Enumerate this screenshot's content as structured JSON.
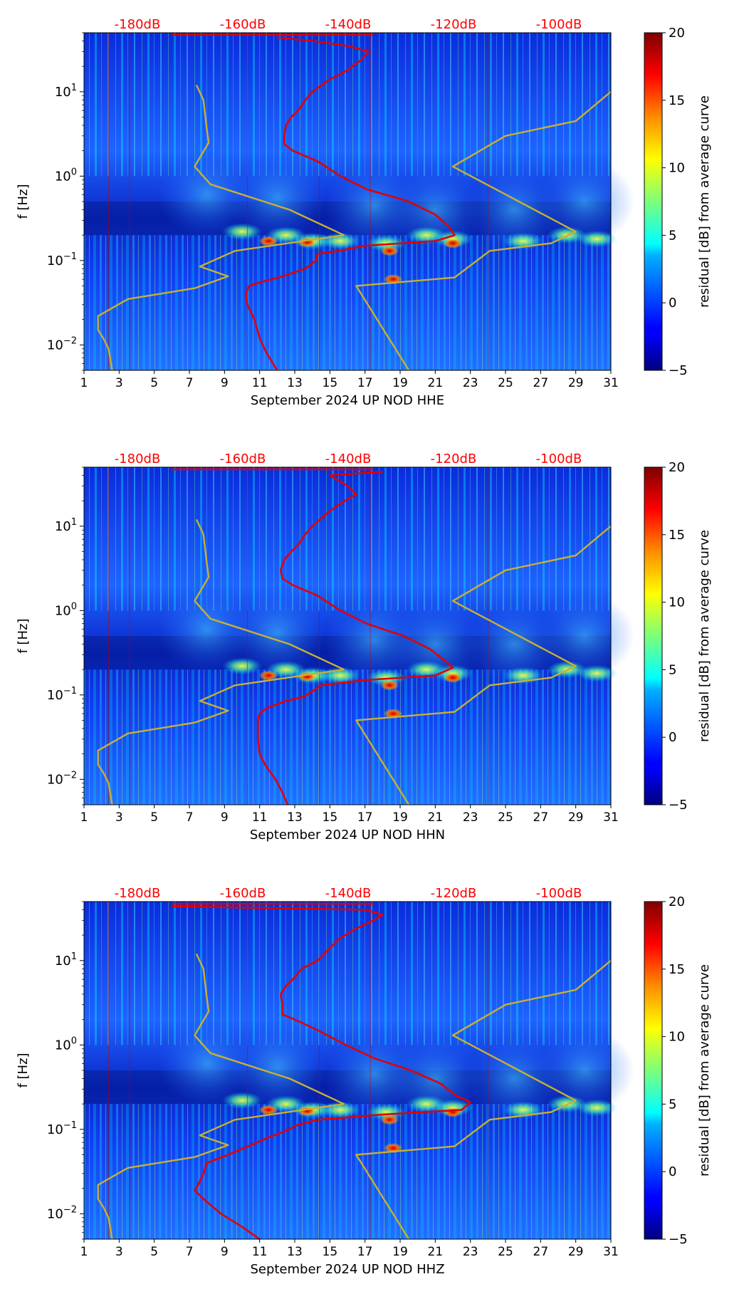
{
  "chart_data": [
    {
      "type": "heatmap",
      "xlabel": "September 2024 UP NOD  HHE",
      "ylabel": "f [Hz]",
      "x_ticks": [
        "1",
        "3",
        "5",
        "7",
        "9",
        "11",
        "13",
        "15",
        "17",
        "19",
        "21",
        "23",
        "25",
        "27",
        "29",
        "31"
      ],
      "x_range": [
        1,
        31
      ],
      "y_scale": "log",
      "y_ticks": [
        {
          "label": "10",
          "exp": "−2",
          "value": 0.01
        },
        {
          "label": "10",
          "exp": "−1",
          "value": 0.1
        },
        {
          "label": "10",
          "exp": "0",
          "value": 1
        },
        {
          "label": "10",
          "exp": "1",
          "value": 10
        }
      ],
      "y_range": [
        0.005,
        50
      ],
      "top_axis_labels": [
        "-180dB",
        "-160dB",
        "-140dB",
        "-120dB",
        "-100dB"
      ],
      "top_axis_color": "#ff0000",
      "colorbar": {
        "label": "residual [dB] from average curve",
        "ticks": [
          "−5",
          "0",
          "5",
          "10",
          "15",
          "20"
        ],
        "range": [
          -5,
          20
        ],
        "colormap": "jet"
      },
      "series": [
        {
          "color": "#e00000",
          "role": "average PSD curve",
          "points": [
            [
              44,
              12
            ],
            [
              40,
              14
            ],
            [
              35,
              16
            ],
            [
              30,
              17.2
            ],
            [
              24,
              16.8
            ],
            [
              18,
              16
            ],
            [
              14,
              15
            ],
            [
              10,
              14
            ],
            [
              8,
              13.6
            ],
            [
              6,
              13.2
            ],
            [
              5,
              12.8
            ],
            [
              4,
              12.5
            ],
            [
              3,
              12.4
            ],
            [
              2.4,
              12.4
            ],
            [
              2,
              12.9
            ],
            [
              1.5,
              14.3
            ],
            [
              1,
              15.6
            ],
            [
              0.7,
              17.1
            ],
            [
              0.5,
              19.5
            ],
            [
              0.35,
              21
            ],
            [
              0.25,
              21.8
            ],
            [
              0.2,
              22.1
            ],
            [
              0.17,
              21
            ],
            [
              0.15,
              17
            ],
            [
              0.13,
              15.5
            ],
            [
              0.12,
              14.3
            ],
            [
              0.1,
              14.2
            ],
            [
              0.08,
              13.6
            ],
            [
              0.065,
              12.3
            ],
            [
              0.055,
              11
            ],
            [
              0.05,
              10.4
            ],
            [
              0.04,
              10.2
            ],
            [
              0.03,
              10.3
            ],
            [
              0.02,
              10.7
            ],
            [
              0.012,
              11
            ],
            [
              0.008,
              11.4
            ],
            [
              0.005,
              12
            ]
          ]
        },
        {
          "color": "#c8b032",
          "role": "Peterson NLNM",
          "points": [
            [
              0.005,
              2.6
            ],
            [
              0.009,
              2.4
            ],
            [
              0.012,
              2.1
            ],
            [
              0.015,
              1.8
            ],
            [
              0.022,
              1.8
            ],
            [
              0.035,
              3.5
            ],
            [
              0.047,
              7.3
            ],
            [
              0.065,
              9.2
            ],
            [
              0.085,
              7.6
            ],
            [
              0.13,
              9.6
            ],
            [
              0.2,
              15.8
            ],
            [
              0.4,
              12.7
            ],
            [
              0.8,
              8.2
            ],
            [
              1.3,
              7.3
            ],
            [
              2.5,
              8.1
            ],
            [
              3.5,
              8.0
            ],
            [
              8,
              7.8
            ],
            [
              12,
              7.4
            ]
          ]
        },
        {
          "color": "#c8b032",
          "role": "Peterson NHNM",
          "points": [
            [
              0.005,
              19.5
            ],
            [
              0.05,
              16.5
            ],
            [
              0.063,
              22.1
            ],
            [
              0.13,
              24.1
            ],
            [
              0.16,
              27.6
            ],
            [
              0.22,
              29
            ],
            [
              1.3,
              22
            ],
            [
              3,
              25
            ],
            [
              4.5,
              29
            ],
            [
              10,
              31
            ]
          ]
        }
      ]
    },
    {
      "type": "heatmap",
      "xlabel": "September 2024 UP NOD  HHN",
      "ylabel": "f [Hz]",
      "x_ticks": [
        "1",
        "3",
        "5",
        "7",
        "9",
        "11",
        "13",
        "15",
        "17",
        "19",
        "21",
        "23",
        "25",
        "27",
        "29",
        "31"
      ],
      "x_range": [
        1,
        31
      ],
      "y_scale": "log",
      "y_ticks": [
        {
          "label": "10",
          "exp": "−2",
          "value": 0.01
        },
        {
          "label": "10",
          "exp": "−1",
          "value": 0.1
        },
        {
          "label": "10",
          "exp": "0",
          "value": 1
        },
        {
          "label": "10",
          "exp": "1",
          "value": 10
        }
      ],
      "y_range": [
        0.005,
        50
      ],
      "top_axis_labels": [
        "-180dB",
        "-160dB",
        "-140dB",
        "-120dB",
        "-100dB"
      ],
      "top_axis_color": "#ff0000",
      "colorbar": {
        "label": "residual [dB] from average curve",
        "ticks": [
          "−5",
          "0",
          "5",
          "10",
          "15",
          "20"
        ],
        "range": [
          -5,
          20
        ],
        "colormap": "jet"
      },
      "series": [
        {
          "color": "#e00000",
          "role": "average PSD curve",
          "points": [
            [
              44,
              18
            ],
            [
              40,
              15
            ],
            [
              30,
              16
            ],
            [
              24,
              16.5
            ],
            [
              18,
              15.5
            ],
            [
              14,
              14.8
            ],
            [
              10,
              14
            ],
            [
              8,
              13.6
            ],
            [
              6,
              13.2
            ],
            [
              5,
              12.8
            ],
            [
              4,
              12.4
            ],
            [
              3,
              12.2
            ],
            [
              2.4,
              12.3
            ],
            [
              2,
              12.9
            ],
            [
              1.5,
              14.3
            ],
            [
              1,
              15.6
            ],
            [
              0.7,
              17.1
            ],
            [
              0.5,
              19.2
            ],
            [
              0.35,
              20.7
            ],
            [
              0.25,
              21.6
            ],
            [
              0.21,
              22
            ],
            [
              0.17,
              21
            ],
            [
              0.15,
              17
            ],
            [
              0.13,
              14.5
            ],
            [
              0.11,
              14
            ],
            [
              0.095,
              13.5
            ],
            [
              0.085,
              12.5
            ],
            [
              0.07,
              11.4
            ],
            [
              0.06,
              11
            ],
            [
              0.05,
              10.9
            ],
            [
              0.04,
              10.9
            ],
            [
              0.03,
              10.9
            ],
            [
              0.02,
              11
            ],
            [
              0.015,
              11.3
            ],
            [
              0.01,
              11.9
            ],
            [
              0.007,
              12.3
            ],
            [
              0.005,
              12.6
            ]
          ]
        },
        {
          "color": "#c8b032",
          "role": "Peterson NLNM",
          "points": [
            [
              0.005,
              2.6
            ],
            [
              0.009,
              2.4
            ],
            [
              0.012,
              2.1
            ],
            [
              0.015,
              1.8
            ],
            [
              0.022,
              1.8
            ],
            [
              0.035,
              3.5
            ],
            [
              0.047,
              7.3
            ],
            [
              0.065,
              9.2
            ],
            [
              0.085,
              7.6
            ],
            [
              0.13,
              9.6
            ],
            [
              0.2,
              15.8
            ],
            [
              0.4,
              12.7
            ],
            [
              0.8,
              8.2
            ],
            [
              1.3,
              7.3
            ],
            [
              2.5,
              8.1
            ],
            [
              3.5,
              8.0
            ],
            [
              8,
              7.8
            ],
            [
              12,
              7.4
            ]
          ]
        },
        {
          "color": "#c8b032",
          "role": "Peterson NHNM",
          "points": [
            [
              0.005,
              19.5
            ],
            [
              0.05,
              16.5
            ],
            [
              0.063,
              22.1
            ],
            [
              0.13,
              24.1
            ],
            [
              0.16,
              27.6
            ],
            [
              0.22,
              29
            ],
            [
              1.3,
              22
            ],
            [
              3,
              25
            ],
            [
              4.5,
              29
            ],
            [
              10,
              31
            ]
          ]
        }
      ]
    },
    {
      "type": "heatmap",
      "xlabel": "September 2024 UP NOD  HHZ",
      "ylabel": "f [Hz]",
      "x_ticks": [
        "1",
        "3",
        "5",
        "7",
        "9",
        "11",
        "13",
        "15",
        "17",
        "19",
        "21",
        "23",
        "25",
        "27",
        "29",
        "31"
      ],
      "x_range": [
        1,
        31
      ],
      "y_scale": "log",
      "y_ticks": [
        {
          "label": "10",
          "exp": "−2",
          "value": 0.01
        },
        {
          "label": "10",
          "exp": "−1",
          "value": 0.1
        },
        {
          "label": "10",
          "exp": "0",
          "value": 1
        },
        {
          "label": "10",
          "exp": "1",
          "value": 10
        }
      ],
      "y_range": [
        0.005,
        50
      ],
      "top_axis_labels": [
        "-180dB",
        "-160dB",
        "-140dB",
        "-120dB",
        "-100dB"
      ],
      "top_axis_color": "#ff0000",
      "colorbar": {
        "label": "residual [dB] from average curve",
        "ticks": [
          "−5",
          "0",
          "5",
          "10",
          "15",
          "20"
        ],
        "range": [
          -5,
          20
        ],
        "colormap": "jet"
      },
      "series": [
        {
          "color": "#e00000",
          "role": "average PSD curve",
          "points": [
            [
              44,
              6
            ],
            [
              40,
              17
            ],
            [
              35,
              18
            ],
            [
              30,
              17.5
            ],
            [
              24,
              16.5
            ],
            [
              18,
              15.5
            ],
            [
              14,
              15
            ],
            [
              10,
              14.3
            ],
            [
              8,
              13.4
            ],
            [
              6,
              12.9
            ],
            [
              5,
              12.5
            ],
            [
              4,
              12.2
            ],
            [
              3,
              12.3
            ],
            [
              2.3,
              12.3
            ],
            [
              2,
              13
            ],
            [
              1.5,
              14.3
            ],
            [
              1,
              15.9
            ],
            [
              0.7,
              17.5
            ],
            [
              0.5,
              19.6
            ],
            [
              0.35,
              21.3
            ],
            [
              0.25,
              22.2
            ],
            [
              0.21,
              23
            ],
            [
              0.17,
              22.5
            ],
            [
              0.15,
              18
            ],
            [
              0.13,
              14.3
            ],
            [
              0.11,
              13
            ],
            [
              0.1,
              12.7
            ],
            [
              0.08,
              11.5
            ],
            [
              0.065,
              10.5
            ],
            [
              0.05,
              9.2
            ],
            [
              0.04,
              8
            ],
            [
              0.03,
              7.8
            ],
            [
              0.022,
              7.5
            ],
            [
              0.019,
              7.3
            ],
            [
              0.015,
              7.8
            ],
            [
              0.01,
              8.8
            ],
            [
              0.007,
              10
            ],
            [
              0.005,
              11
            ]
          ]
        },
        {
          "color": "#c8b032",
          "role": "Peterson NLNM",
          "points": [
            [
              0.005,
              2.6
            ],
            [
              0.009,
              2.4
            ],
            [
              0.012,
              2.1
            ],
            [
              0.015,
              1.8
            ],
            [
              0.022,
              1.8
            ],
            [
              0.035,
              3.5
            ],
            [
              0.047,
              7.3
            ],
            [
              0.065,
              9.2
            ],
            [
              0.085,
              7.6
            ],
            [
              0.13,
              9.6
            ],
            [
              0.2,
              15.8
            ],
            [
              0.4,
              12.7
            ],
            [
              0.8,
              8.2
            ],
            [
              1.3,
              7.3
            ],
            [
              2.5,
              8.1
            ],
            [
              3.5,
              8.0
            ],
            [
              8,
              7.8
            ],
            [
              12,
              7.4
            ]
          ]
        },
        {
          "color": "#c8b032",
          "role": "Peterson NHNM",
          "points": [
            [
              0.005,
              19.5
            ],
            [
              0.05,
              16.5
            ],
            [
              0.063,
              22.1
            ],
            [
              0.13,
              24.1
            ],
            [
              0.16,
              27.6
            ],
            [
              0.22,
              29
            ],
            [
              1.3,
              22
            ],
            [
              3,
              25
            ],
            [
              4.5,
              29
            ],
            [
              10,
              31
            ]
          ]
        }
      ]
    }
  ]
}
